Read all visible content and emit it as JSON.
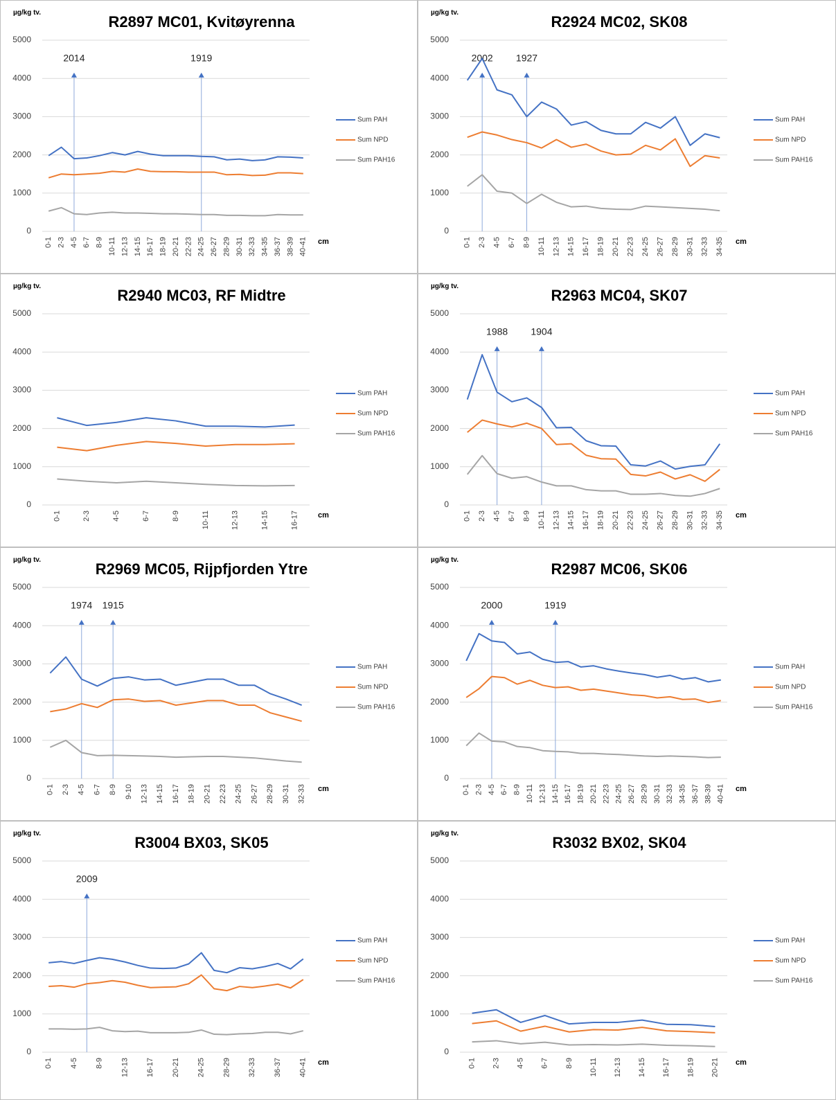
{
  "chart_data": [
    {
      "type": "line",
      "title": "R2897 MC01, Kvitøyrenna",
      "y_label": "µg/kg tv.",
      "x_label": "cm",
      "categories": [
        "0-1",
        "2-3",
        "4-5",
        "6-7",
        "8-9",
        "10-11",
        "12-13",
        "14-15",
        "16-17",
        "18-19",
        "20-21",
        "22-23",
        "24-25",
        "26-27",
        "28-29",
        "30-31",
        "32-33",
        "34-35",
        "36-37",
        "38-39",
        "40-41"
      ],
      "series": [
        {
          "name": "Sum PAH",
          "color": "#4472c4",
          "values": [
            1980,
            2200,
            1900,
            1920,
            1980,
            2060,
            2000,
            2090,
            2020,
            1980,
            1980,
            1980,
            1960,
            1950,
            1870,
            1890,
            1850,
            1870,
            1950,
            1940,
            1920
          ]
        },
        {
          "name": "Sum NPD",
          "color": "#ed7d31",
          "values": [
            1400,
            1500,
            1480,
            1500,
            1520,
            1570,
            1550,
            1630,
            1570,
            1560,
            1560,
            1550,
            1550,
            1550,
            1480,
            1490,
            1460,
            1470,
            1530,
            1530,
            1510
          ]
        },
        {
          "name": "Sum PAH16",
          "color": "#a5a5a5",
          "values": [
            530,
            620,
            460,
            440,
            480,
            500,
            480,
            480,
            470,
            460,
            460,
            450,
            440,
            440,
            420,
            420,
            410,
            410,
            440,
            430,
            430
          ]
        }
      ],
      "annotations": [
        {
          "label": "2014",
          "index": 2
        },
        {
          "label": "1919",
          "index": 12
        }
      ],
      "ylim": [
        0,
        5000
      ],
      "yticks": [
        0,
        1000,
        2000,
        3000,
        4000,
        5000
      ],
      "grid": true,
      "legend": "right"
    },
    {
      "type": "line",
      "title": "R2924 MC02, SK08",
      "y_label": "µg/kg tv.",
      "x_label": "cm",
      "categories": [
        "0-1",
        "2-3",
        "4-5",
        "6-7",
        "8-9",
        "10-11",
        "12-13",
        "14-15",
        "16-17",
        "18-19",
        "20-21",
        "22-23",
        "24-25",
        "26-27",
        "28-29",
        "30-31",
        "32-33",
        "34-35"
      ],
      "series": [
        {
          "name": "Sum PAH",
          "color": "#4472c4",
          "values": [
            3950,
            4520,
            3700,
            3570,
            3000,
            3380,
            3200,
            2780,
            2870,
            2640,
            2550,
            2550,
            2850,
            2700,
            3000,
            2250,
            2550,
            2450
          ]
        },
        {
          "name": "Sum NPD",
          "color": "#ed7d31",
          "values": [
            2460,
            2600,
            2520,
            2400,
            2320,
            2180,
            2400,
            2200,
            2280,
            2100,
            2000,
            2020,
            2250,
            2130,
            2420,
            1700,
            1980,
            1920
          ]
        },
        {
          "name": "Sum PAH16",
          "color": "#a5a5a5",
          "values": [
            1180,
            1480,
            1050,
            1000,
            730,
            970,
            760,
            640,
            660,
            600,
            580,
            570,
            660,
            640,
            620,
            600,
            580,
            540
          ]
        }
      ],
      "annotations": [
        {
          "label": "2002",
          "index": 1
        },
        {
          "label": "1927",
          "index": 4
        }
      ],
      "ylim": [
        0,
        5000
      ],
      "yticks": [
        0,
        1000,
        2000,
        3000,
        4000,
        5000
      ],
      "grid": true,
      "legend": "right"
    },
    {
      "type": "line",
      "title": "R2940 MC03, RF Midtre",
      "y_label": "µg/kg tv.",
      "x_label": "cm",
      "categories": [
        "0-1",
        "2-3",
        "4-5",
        "6-7",
        "8-9",
        "10-11",
        "12-13",
        "14-15",
        "16-17"
      ],
      "series": [
        {
          "name": "Sum PAH",
          "color": "#4472c4",
          "values": [
            2280,
            2080,
            2160,
            2280,
            2200,
            2060,
            2060,
            2040,
            2090
          ]
        },
        {
          "name": "Sum NPD",
          "color": "#ed7d31",
          "values": [
            1510,
            1420,
            1560,
            1660,
            1610,
            1540,
            1580,
            1580,
            1600
          ]
        },
        {
          "name": "Sum PAH16",
          "color": "#a5a5a5",
          "values": [
            680,
            620,
            580,
            620,
            580,
            540,
            510,
            500,
            510
          ]
        }
      ],
      "annotations": [],
      "ylim": [
        0,
        5000
      ],
      "yticks": [
        0,
        1000,
        2000,
        3000,
        4000,
        5000
      ],
      "grid": true,
      "legend": "right"
    },
    {
      "type": "line",
      "title": "R2963 MC04, SK07",
      "y_label": "µg/kg tv.",
      "x_label": "cm",
      "categories": [
        "0-1",
        "2-3",
        "4-5",
        "6-7",
        "8-9",
        "10-11",
        "12-13",
        "14-15",
        "16-17",
        "18-19",
        "20-21",
        "22-23",
        "24-25",
        "26-27",
        "28-29",
        "30-31",
        "32-33",
        "34-35"
      ],
      "series": [
        {
          "name": "Sum PAH",
          "color": "#4472c4",
          "values": [
            2760,
            3930,
            2950,
            2700,
            2800,
            2550,
            2020,
            2030,
            1680,
            1550,
            1540,
            1050,
            1020,
            1150,
            940,
            1010,
            1050,
            1600
          ]
        },
        {
          "name": "Sum NPD",
          "color": "#ed7d31",
          "values": [
            1900,
            2220,
            2120,
            2040,
            2140,
            2000,
            1580,
            1600,
            1300,
            1210,
            1200,
            800,
            760,
            860,
            680,
            790,
            620,
            930
          ]
        },
        {
          "name": "Sum PAH16",
          "color": "#a5a5a5",
          "values": [
            800,
            1290,
            820,
            700,
            740,
            600,
            500,
            500,
            400,
            370,
            370,
            280,
            280,
            300,
            250,
            230,
            300,
            430
          ]
        }
      ],
      "annotations": [
        {
          "label": "1988",
          "index": 2
        },
        {
          "label": "1904",
          "index": 5
        }
      ],
      "ylim": [
        0,
        5000
      ],
      "yticks": [
        0,
        1000,
        2000,
        3000,
        4000,
        5000
      ],
      "grid": true,
      "legend": "right"
    },
    {
      "type": "line",
      "title": "R2969 MC05, Rijpfjorden Ytre",
      "y_label": "µg/kg tv.",
      "x_label": "cm",
      "categories": [
        "0-1",
        "2-3",
        "4-5",
        "6-7",
        "8-9",
        "9-10",
        "12-13",
        "14-15",
        "16-17",
        "18-19",
        "20-21",
        "22-23",
        "24-25",
        "26-27",
        "28-29",
        "30-31",
        "32-33"
      ],
      "series": [
        {
          "name": "Sum PAH",
          "color": "#4472c4",
          "values": [
            2760,
            3180,
            2600,
            2420,
            2620,
            2660,
            2580,
            2600,
            2440,
            2520,
            2600,
            2600,
            2440,
            2440,
            2220,
            2080,
            1920
          ]
        },
        {
          "name": "Sum NPD",
          "color": "#ed7d31",
          "values": [
            1750,
            1820,
            1960,
            1860,
            2060,
            2080,
            2020,
            2040,
            1920,
            1980,
            2040,
            2040,
            1920,
            1920,
            1720,
            1610,
            1500
          ]
        },
        {
          "name": "Sum PAH16",
          "color": "#a5a5a5",
          "values": [
            820,
            1000,
            680,
            600,
            610,
            600,
            590,
            580,
            560,
            570,
            580,
            580,
            560,
            540,
            500,
            460,
            430
          ]
        }
      ],
      "annotations": [
        {
          "label": "1974",
          "index": 2
        },
        {
          "label": "1915",
          "index": 4
        }
      ],
      "ylim": [
        0,
        5000
      ],
      "yticks": [
        0,
        1000,
        2000,
        3000,
        4000,
        5000
      ],
      "grid": true,
      "legend": "right"
    },
    {
      "type": "line",
      "title": "R2987 MC06, SK06",
      "y_label": "µg/kg tv.",
      "x_label": "cm",
      "categories": [
        "0-1",
        "2-3",
        "4-5",
        "6-7",
        "8-9",
        "10-11",
        "12-13",
        "14-15",
        "16-17",
        "18-19",
        "20-21",
        "22-23",
        "24-25",
        "26-27",
        "28-29",
        "30-31",
        "32-33",
        "34-35",
        "36-37",
        "38-39",
        "40-41"
      ],
      "series": [
        {
          "name": "Sum PAH",
          "color": "#4472c4",
          "values": [
            3080,
            3790,
            3600,
            3560,
            3260,
            3310,
            3120,
            3040,
            3060,
            2920,
            2950,
            2870,
            2810,
            2760,
            2720,
            2650,
            2700,
            2600,
            2640,
            2530,
            2580
          ]
        },
        {
          "name": "Sum NPD",
          "color": "#ed7d31",
          "values": [
            2120,
            2350,
            2670,
            2640,
            2470,
            2570,
            2440,
            2380,
            2400,
            2310,
            2340,
            2290,
            2240,
            2190,
            2170,
            2110,
            2140,
            2070,
            2080,
            1990,
            2040
          ]
        },
        {
          "name": "Sum PAH16",
          "color": "#a5a5a5",
          "values": [
            860,
            1190,
            980,
            960,
            840,
            810,
            730,
            710,
            700,
            660,
            660,
            640,
            630,
            610,
            590,
            580,
            590,
            580,
            570,
            550,
            560
          ]
        }
      ],
      "annotations": [
        {
          "label": "2000",
          "index": 2
        },
        {
          "label": "1919",
          "index": 7
        }
      ],
      "ylim": [
        0,
        5000
      ],
      "yticks": [
        0,
        1000,
        2000,
        3000,
        4000,
        5000
      ],
      "grid": true,
      "legend": "right"
    },
    {
      "type": "line",
      "title": "R3004 BX03, SK05",
      "y_label": "µg/kg tv.",
      "x_label": "cm",
      "categories": [
        "0-1",
        null,
        "4-5",
        null,
        "8-9",
        null,
        "12-13",
        null,
        "16-17",
        null,
        "20-21",
        null,
        "24-25",
        null,
        "28-29",
        null,
        "32-33",
        null,
        "36-37",
        null,
        "40-41"
      ],
      "series": [
        {
          "name": "Sum PAH",
          "color": "#4472c4",
          "values": [
            2340,
            2370,
            2320,
            2400,
            2470,
            2430,
            2360,
            2270,
            2200,
            2190,
            2200,
            2310,
            2600,
            2140,
            2080,
            2210,
            2180,
            2240,
            2320,
            2180,
            2440
          ]
        },
        {
          "name": "Sum NPD",
          "color": "#ed7d31",
          "values": [
            1720,
            1740,
            1700,
            1790,
            1820,
            1870,
            1830,
            1750,
            1690,
            1700,
            1710,
            1790,
            2020,
            1660,
            1610,
            1720,
            1690,
            1730,
            1780,
            1680,
            1900
          ]
        },
        {
          "name": "Sum PAH16",
          "color": "#a5a5a5",
          "values": [
            610,
            610,
            600,
            610,
            650,
            560,
            540,
            550,
            510,
            510,
            510,
            520,
            580,
            470,
            460,
            480,
            490,
            520,
            520,
            480,
            560
          ]
        }
      ],
      "annotations": [
        {
          "label": "2009",
          "index": 3
        }
      ],
      "ylim": [
        0,
        5000
      ],
      "yticks": [
        0,
        1000,
        2000,
        3000,
        4000,
        5000
      ],
      "grid": true,
      "legend": "right"
    },
    {
      "type": "line",
      "title": "R3032 BX02, SK04",
      "y_label": "µg/kg tv.",
      "x_label": "cm",
      "categories": [
        "0-1",
        "2-3",
        "4-5",
        "6-7",
        "8-9",
        "10-11",
        "12-13",
        "14-15",
        "16-17",
        "18-19",
        "20-21"
      ],
      "series": [
        {
          "name": "Sum PAH",
          "color": "#4472c4",
          "values": [
            1020,
            1110,
            780,
            960,
            740,
            780,
            780,
            840,
            730,
            720,
            670
          ]
        },
        {
          "name": "Sum NPD",
          "color": "#ed7d31",
          "values": [
            750,
            820,
            550,
            680,
            530,
            590,
            580,
            650,
            560,
            540,
            510
          ]
        },
        {
          "name": "Sum PAH16",
          "color": "#a5a5a5",
          "values": [
            270,
            300,
            220,
            260,
            190,
            200,
            190,
            210,
            180,
            170,
            150
          ]
        }
      ],
      "annotations": [],
      "ylim": [
        0,
        5000
      ],
      "yticks": [
        0,
        1000,
        2000,
        3000,
        4000,
        5000
      ],
      "grid": true,
      "legend": "right"
    }
  ]
}
